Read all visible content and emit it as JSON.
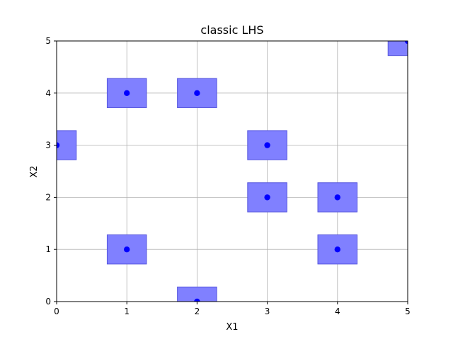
{
  "chart_data": {
    "type": "scatter",
    "title": "classic LHS",
    "xlabel": "X1",
    "ylabel": "X2",
    "xlim": [
      0,
      5
    ],
    "ylim": [
      0,
      5
    ],
    "xticks": [
      "0",
      "1",
      "2",
      "3",
      "4",
      "5"
    ],
    "yticks": [
      "0",
      "1",
      "2",
      "3",
      "4",
      "5"
    ],
    "grid": true,
    "points": [
      {
        "x": 0,
        "y": 3
      },
      {
        "x": 1,
        "y": 4
      },
      {
        "x": 2,
        "y": 4
      },
      {
        "x": 3,
        "y": 3
      },
      {
        "x": 3,
        "y": 2
      },
      {
        "x": 4,
        "y": 2
      },
      {
        "x": 1,
        "y": 1
      },
      {
        "x": 4,
        "y": 1
      },
      {
        "x": 2,
        "y": 0
      },
      {
        "x": 5,
        "y": 5
      }
    ],
    "box_half_width": 0.28,
    "point_color": "#0000ff",
    "box_fill": "#8080ff",
    "box_edge": "#5555dd",
    "grid_color": "#b0b0b0"
  }
}
